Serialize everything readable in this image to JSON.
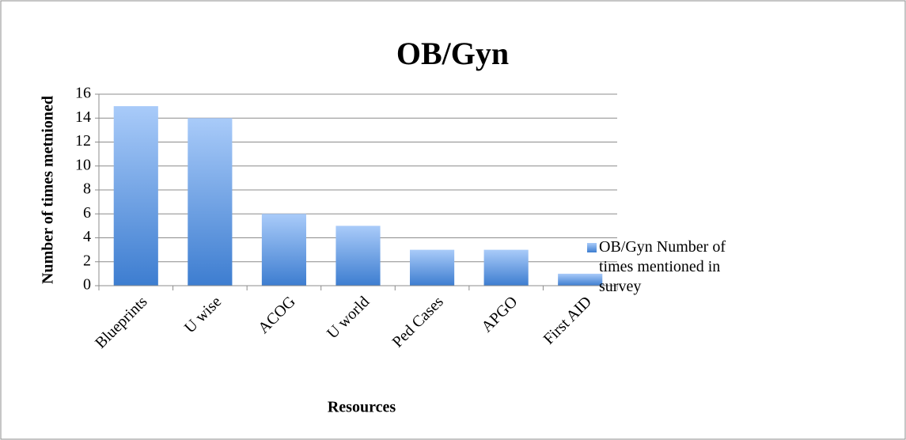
{
  "chart_data": {
    "type": "bar",
    "title": "OB/Gyn",
    "y_label": "Number of times metnioned",
    "x_label": "Resources",
    "categories": [
      "Blueprints",
      "U wise",
      "ACOG",
      "U world",
      "Ped Cases",
      "APGO",
      "First AID"
    ],
    "series": [
      {
        "name": "OB/Gyn Number of times mentioned in survey",
        "color": "#4a86d4",
        "values": [
          15,
          14,
          6,
          5,
          3,
          3,
          1
        ]
      }
    ],
    "ylim": [
      0,
      16
    ],
    "yticks": [
      0,
      2,
      4,
      6,
      8,
      10,
      12,
      14,
      16
    ],
    "grid": true,
    "legend": "right"
  }
}
